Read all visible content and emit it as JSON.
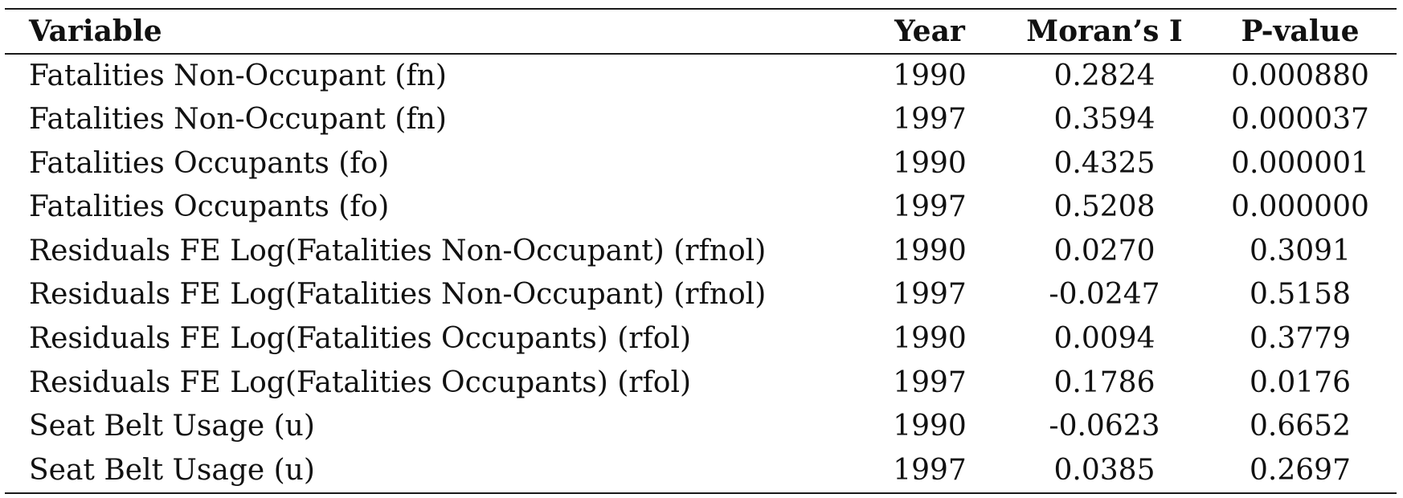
{
  "table": {
    "headers": {
      "variable": "Variable",
      "year": "Year",
      "moran": "Moran’s I",
      "pvalue": "P-value"
    },
    "rows": [
      {
        "variable": "Fatalities Non-Occupant (fn)",
        "year": "1990",
        "moran": "0.2824",
        "pvalue": "0.000880"
      },
      {
        "variable": "Fatalities Non-Occupant (fn)",
        "year": "1997",
        "moran": "0.3594",
        "pvalue": "0.000037"
      },
      {
        "variable": "Fatalities Occupants (fo)",
        "year": "1990",
        "moran": "0.4325",
        "pvalue": "0.000001"
      },
      {
        "variable": "Fatalities Occupants (fo)",
        "year": "1997",
        "moran": "0.5208",
        "pvalue": "0.000000"
      },
      {
        "variable": "Residuals FE Log(Fatalities Non-Occupant) (rfnol)",
        "year": "1990",
        "moran": "0.0270",
        "pvalue": "0.3091"
      },
      {
        "variable": "Residuals FE Log(Fatalities Non-Occupant) (rfnol)",
        "year": "1997",
        "moran": "-0.0247",
        "pvalue": "0.5158"
      },
      {
        "variable": "Residuals FE Log(Fatalities Occupants) (rfol)",
        "year": "1990",
        "moran": "0.0094",
        "pvalue": "0.3779"
      },
      {
        "variable": "Residuals FE Log(Fatalities Occupants) (rfol)",
        "year": "1997",
        "moran": "0.1786",
        "pvalue": "0.0176"
      },
      {
        "variable": "Seat Belt Usage (u)",
        "year": "1990",
        "moran": "-0.0623",
        "pvalue": "0.6652"
      },
      {
        "variable": "Seat Belt Usage (u)",
        "year": "1997",
        "moran": "0.0385",
        "pvalue": "0.2697"
      }
    ]
  }
}
